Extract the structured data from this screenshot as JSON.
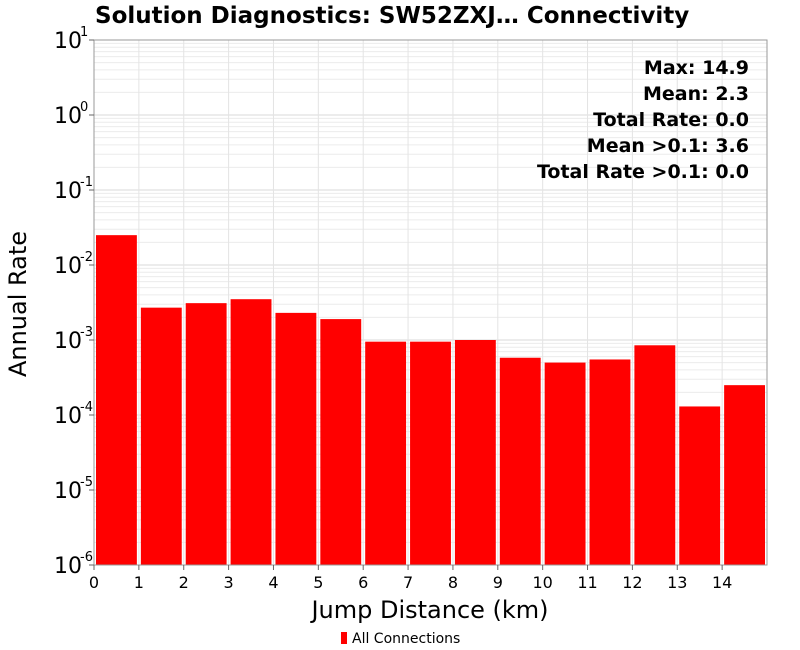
{
  "chart_data": {
    "type": "bar",
    "title": "Solution Diagnostics: SW52ZXJ… Connectivity",
    "xlabel": "Jump Distance (km)",
    "ylabel": "Annual Rate",
    "yscale": "log",
    "ylim": [
      1e-06,
      10
    ],
    "xlim": [
      0,
      15
    ],
    "grid": true,
    "xticks": [
      "0",
      "1",
      "2",
      "3",
      "4",
      "5",
      "6",
      "7",
      "8",
      "9",
      "10",
      "11",
      "12",
      "13",
      "14"
    ],
    "yticks": [
      {
        "base": "10",
        "exp": "-6",
        "value": 1e-06
      },
      {
        "base": "10",
        "exp": "-5",
        "value": 1e-05
      },
      {
        "base": "10",
        "exp": "-4",
        "value": 0.0001
      },
      {
        "base": "10",
        "exp": "-3",
        "value": 0.001
      },
      {
        "base": "10",
        "exp": "-2",
        "value": 0.01
      },
      {
        "base": "10",
        "exp": "-1",
        "value": 0.1
      },
      {
        "base": "10",
        "exp": "0",
        "value": 1
      },
      {
        "base": "10",
        "exp": "1",
        "value": 10
      }
    ],
    "bins": [
      0,
      1,
      2,
      3,
      4,
      5,
      6,
      7,
      8,
      9,
      10,
      11,
      12,
      13,
      14
    ],
    "series": [
      {
        "name": "All Connections",
        "color": "#ff0000",
        "values": [
          0.025,
          0.0027,
          0.0031,
          0.0035,
          0.0023,
          0.0019,
          0.00095,
          0.00095,
          0.001,
          0.00058,
          0.0005,
          0.00055,
          0.00085,
          0.00013,
          0.00025
        ]
      }
    ],
    "annotations": [
      "Max: 14.9",
      "Mean: 2.3",
      "Total Rate: 0.0",
      "Mean >0.1: 3.6",
      "Total Rate >0.1: 0.0"
    ],
    "legend": {
      "position": "bottom-center",
      "entries": [
        "All Connections"
      ]
    }
  }
}
